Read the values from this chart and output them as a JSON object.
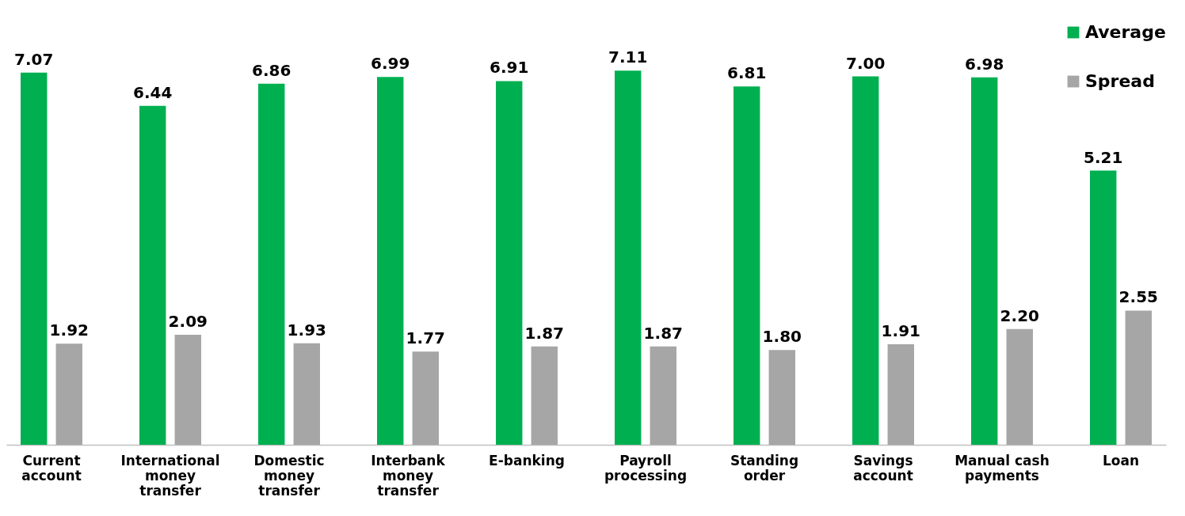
{
  "chart_data": {
    "type": "bar",
    "categories": [
      "Current account",
      "International money transfer",
      "Domestic money transfer",
      "Interbank money transfer",
      "E-banking",
      "Payroll processing",
      "Standing order",
      "Savings account",
      "Manual cash payments",
      "Loan"
    ],
    "series": [
      {
        "name": "Average",
        "color": "#00b050",
        "values": [
          7.07,
          6.44,
          6.86,
          6.99,
          6.91,
          7.11,
          6.81,
          7.0,
          6.98,
          5.21
        ],
        "value_labels": [
          "7.07",
          "6.44",
          "6.86",
          "6.99",
          "6.91",
          "7.11",
          "6.81",
          "7.00",
          "6.98",
          "5.21"
        ]
      },
      {
        "name": "Spread",
        "color": "#a6a6a6",
        "values": [
          1.92,
          2.09,
          1.93,
          1.77,
          1.87,
          1.87,
          1.8,
          1.91,
          2.2,
          2.55
        ],
        "value_labels": [
          "1.92",
          "2.09",
          "1.93",
          "1.77",
          "1.87",
          "1.87",
          "1.80",
          "1.91",
          "2.20",
          "2.55"
        ]
      }
    ],
    "legend": "top right",
    "grid": false
  }
}
